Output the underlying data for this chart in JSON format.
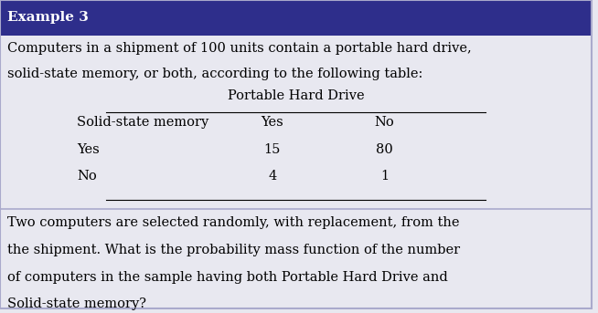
{
  "title": "Example 3",
  "title_bg_color": "#2E2E8B",
  "title_text_color": "#FFFFFF",
  "body_bg_color": "#E8E8F0",
  "main_text_line1": "Computers in a shipment of 100 units contain a portable hard drive,",
  "main_text_line2": "solid-state memory, or both, according to the following table:",
  "table_header_col": "Portable Hard Drive",
  "table_col1_header": "Solid-state memory",
  "table_col2_header": "Yes",
  "table_col3_header": "No",
  "table_row1_label": "Yes",
  "table_row1_val1": "15",
  "table_row1_val2": "80",
  "table_row2_label": "No",
  "table_row2_val1": "4",
  "table_row2_val2": "1",
  "bottom_text_line1": "Two computers are selected randomly, with replacement, from the",
  "bottom_text_line2": "the shipment. What is the probability mass function of the number",
  "bottom_text_line3": "of computers in the sample having both Portable Hard Drive and",
  "bottom_text_line4": "Solid-state memory?",
  "font_family": "serif",
  "title_fontsize": 11,
  "body_fontsize": 10.5,
  "table_fontsize": 10.5
}
